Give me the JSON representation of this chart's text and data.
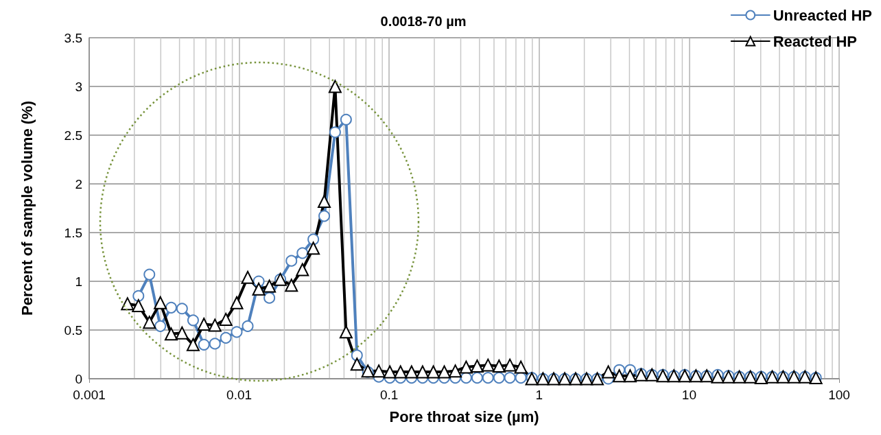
{
  "chart_data": {
    "type": "line",
    "title": "0.0018-70 µm",
    "xlabel": "Pore throat size (µm)",
    "ylabel": "Percent of sample volume (%)",
    "x": [
      0.0018,
      0.00213,
      0.00252,
      0.00298,
      0.00352,
      0.00416,
      0.00493,
      0.00582,
      0.00689,
      0.00815,
      0.00963,
      0.0114,
      0.0135,
      0.0159,
      0.0188,
      0.0223,
      0.0264,
      0.0312,
      0.0369,
      0.0436,
      0.0516,
      0.061,
      0.0721,
      0.0853,
      0.101,
      0.119,
      0.141,
      0.167,
      0.197,
      0.233,
      0.276,
      0.326,
      0.386,
      0.456,
      0.54,
      0.638,
      0.755,
      0.893,
      1.06,
      1.25,
      1.48,
      1.75,
      2.07,
      2.44,
      2.89,
      3.42,
      4.04,
      4.78,
      5.65,
      6.68,
      7.91,
      9.35,
      11.1,
      13.1,
      15.5,
      18.3,
      21.6,
      25.6,
      30.2,
      35.8,
      42.3,
      50.0,
      59.2,
      70.0
    ],
    "series": [
      {
        "name": "Unreacted HP",
        "color": "#4f81bd",
        "marker": "circle",
        "values": [
          null,
          0.85,
          1.07,
          0.54,
          0.73,
          0.72,
          0.6,
          0.35,
          0.36,
          0.42,
          0.48,
          0.54,
          1.0,
          0.83,
          1.02,
          1.21,
          1.29,
          1.43,
          1.67,
          2.53,
          2.66,
          0.24,
          0.07,
          0.02,
          0.01,
          0.01,
          0.01,
          0.01,
          0.01,
          0.01,
          0.01,
          0.01,
          0.01,
          0.01,
          0.01,
          0.01,
          0.01,
          0.01,
          0.0,
          0.0,
          0.0,
          0.0,
          0.0,
          0.0,
          0.0,
          0.09,
          0.09,
          0.05,
          0.04,
          0.04,
          0.03,
          0.04,
          0.03,
          0.03,
          0.04,
          0.03,
          0.02,
          0.02,
          0.02,
          0.02,
          0.02,
          0.02,
          0.02,
          0.01
        ]
      },
      {
        "name": "Reacted HP",
        "color": "#000000",
        "marker": "triangle",
        "values": [
          0.77,
          0.75,
          0.58,
          0.78,
          0.46,
          0.47,
          0.35,
          0.56,
          0.55,
          0.61,
          0.78,
          1.04,
          0.92,
          0.95,
          1.02,
          0.96,
          1.12,
          1.34,
          1.82,
          3.0,
          0.48,
          0.15,
          0.08,
          0.08,
          0.07,
          0.07,
          0.07,
          0.07,
          0.07,
          0.07,
          0.08,
          0.12,
          0.13,
          0.14,
          0.13,
          0.14,
          0.12,
          0.0,
          0.0,
          0.0,
          0.0,
          0.0,
          0.0,
          0.0,
          0.07,
          0.03,
          0.03,
          0.04,
          0.04,
          0.03,
          0.03,
          0.03,
          0.03,
          0.03,
          0.02,
          0.02,
          0.02,
          0.02,
          0.01,
          0.02,
          0.02,
          0.02,
          0.02,
          0.01
        ]
      }
    ],
    "log": "x",
    "xlim": [
      0.001,
      100
    ],
    "xticks": [
      0.001,
      0.01,
      0.1,
      1,
      10,
      100
    ],
    "ylim": [
      0,
      3.5
    ],
    "yticks": [
      0,
      0.5,
      1,
      1.5,
      2,
      2.5,
      3,
      3.5
    ],
    "grid": true,
    "legend": "top right"
  }
}
